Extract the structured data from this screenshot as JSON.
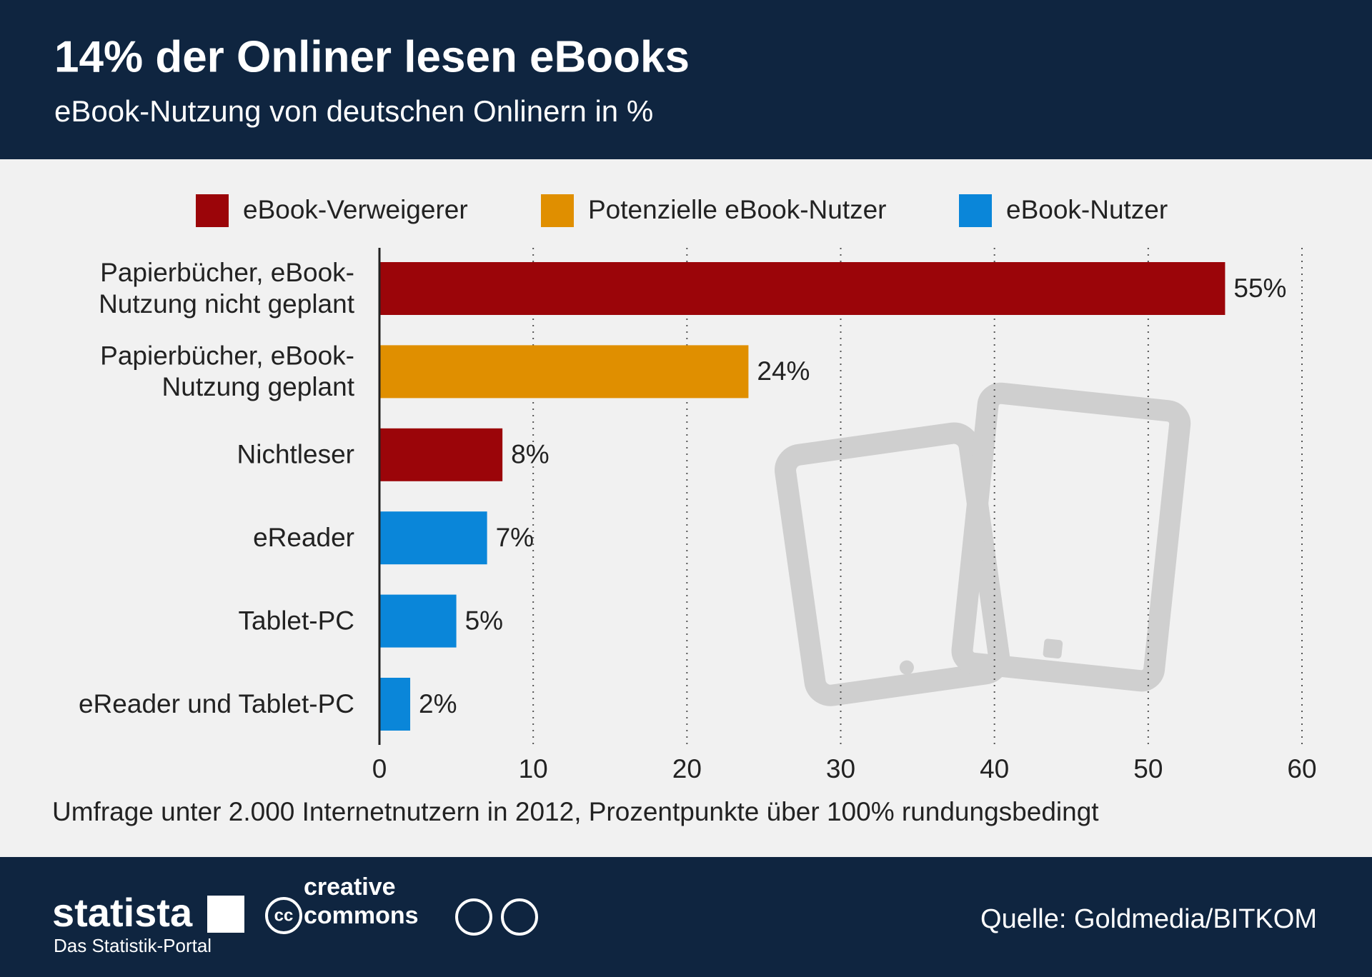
{
  "chart_data": {
    "type": "hbar",
    "title": "14% der Onliner lesen eBooks",
    "subtitle": "eBook-Nutzung von deutschen Onlinern in %",
    "categories": [
      "Papierbücher, eBook-\nNutzung nicht geplant",
      "Papierbücher, eBook-\nNutzung geplant",
      "Nichtleser",
      "eReader",
      "Tablet-PC",
      "eReader und Tablet-PC"
    ],
    "series": [
      {
        "name": "eBook-Verweigerer",
        "color": "#9b0509",
        "values": [
          55,
          null,
          8,
          null,
          null,
          null
        ],
        "value_labels": [
          "55%",
          null,
          "8%",
          null,
          null,
          null
        ]
      },
      {
        "name": "Potenzielle eBook-Nutzer",
        "color": "#e08f00",
        "values": [
          null,
          24,
          null,
          null,
          null,
          null
        ],
        "value_labels": [
          null,
          "24%",
          null,
          null,
          null,
          null
        ]
      },
      {
        "name": "eBook-Nutzer",
        "color": "#0a86d9",
        "values": [
          null,
          null,
          null,
          7,
          5,
          2
        ],
        "value_labels": [
          null,
          null,
          null,
          "7%",
          "5%",
          "2%"
        ]
      }
    ],
    "xlim": [
      0,
      60
    ],
    "xticks": [
      0,
      10,
      20,
      30,
      40,
      50,
      60
    ],
    "grid": true,
    "note": "Umfrage unter 2.000 Internetnutzern in 2012, Prozentpunkte über 100% rundungsbedingt"
  },
  "footer": {
    "logo": "statista",
    "logo_tagline": "Das Statistik-Portal",
    "cc_badge": "cc",
    "license": "creative\ncommons",
    "source": "Quelle: Goldmedia/BITKOM"
  }
}
